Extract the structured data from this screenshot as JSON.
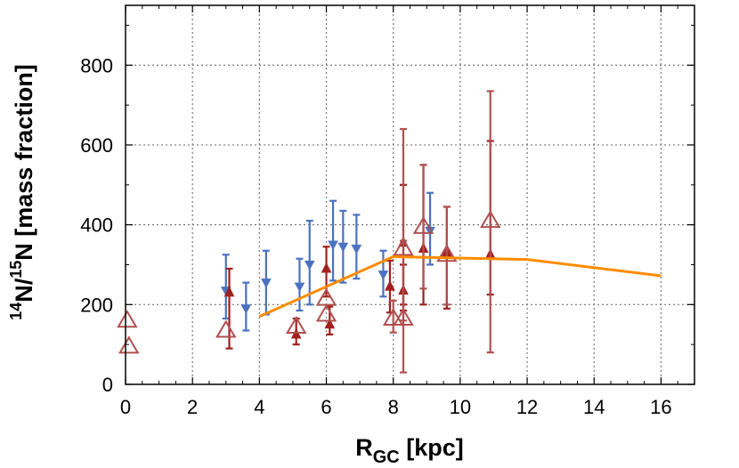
{
  "chart_data": {
    "type": "scatter",
    "xlabel": {
      "main": "R",
      "sub": "GC",
      "rest": " [kpc]"
    },
    "ylabel": {
      "sup1": "14",
      "main1": "N/",
      "sup2": "15",
      "main2": "N [mass fraction]"
    },
    "xlim": [
      0,
      17
    ],
    "ylim": [
      0,
      950
    ],
    "xticks": [
      0,
      2,
      4,
      6,
      8,
      10,
      12,
      14,
      16
    ],
    "yticks": [
      0,
      200,
      400,
      600,
      800
    ],
    "grid": true,
    "colors": {
      "blue": "#4a72c0",
      "red_dark": "#a02020",
      "red_light": "#b05050",
      "model": "#ff8c00"
    },
    "series": [
      {
        "marker": "triangle-down",
        "color": "#4a72c0",
        "points": [
          {
            "x": 3.0,
            "y": 235,
            "lo": 165,
            "hi": 325
          },
          {
            "x": 3.6,
            "y": 190,
            "lo": 135,
            "hi": 255
          },
          {
            "x": 4.2,
            "y": 255,
            "lo": 175,
            "hi": 335
          },
          {
            "x": 5.2,
            "y": 245,
            "lo": 185,
            "hi": 315
          },
          {
            "x": 5.5,
            "y": 300,
            "lo": 200,
            "hi": 410
          },
          {
            "x": 6.2,
            "y": 350,
            "lo": 260,
            "hi": 460
          },
          {
            "x": 6.5,
            "y": 345,
            "lo": 255,
            "hi": 435
          },
          {
            "x": 6.9,
            "y": 340,
            "lo": 265,
            "hi": 425
          },
          {
            "x": 7.7,
            "y": 275,
            "lo": 220,
            "hi": 335
          },
          {
            "x": 9.1,
            "y": 385,
            "lo": 300,
            "hi": 480
          }
        ]
      },
      {
        "marker": "triangle-up-filled",
        "color": "#a02020",
        "points": [
          {
            "x": 3.1,
            "y": 230,
            "lo": 90,
            "hi": 290
          },
          {
            "x": 5.1,
            "y": 125,
            "lo": 100,
            "hi": 165
          },
          {
            "x": 6.0,
            "y": 290,
            "lo": 220,
            "hi": 345
          },
          {
            "x": 6.1,
            "y": 150,
            "lo": 125,
            "hi": 195
          },
          {
            "x": 7.9,
            "y": 245,
            "lo": 180,
            "hi": 310
          },
          {
            "x": 8.3,
            "y": 235,
            "lo": 185,
            "hi": 300
          },
          {
            "x": 8.3,
            "y": 355,
            "lo": 200,
            "hi": 500
          },
          {
            "x": 8.9,
            "y": 340,
            "lo": 200,
            "hi": 550
          },
          {
            "x": 9.6,
            "y": 330,
            "lo": 190,
            "hi": 445
          },
          {
            "x": 10.9,
            "y": 325,
            "lo": 225,
            "hi": 610
          }
        ]
      },
      {
        "marker": "triangle-up-open",
        "color": "#b05050",
        "points": [
          {
            "x": 0.05,
            "y": 160,
            "lo": null,
            "hi": null
          },
          {
            "x": 0.1,
            "y": 95,
            "lo": null,
            "hi": null
          },
          {
            "x": 3.0,
            "y": 135,
            "lo": null,
            "hi": null
          },
          {
            "x": 5.1,
            "y": 145,
            "lo": null,
            "hi": null
          },
          {
            "x": 6.0,
            "y": 215,
            "lo": null,
            "hi": null
          },
          {
            "x": 6.0,
            "y": 175,
            "lo": null,
            "hi": null
          },
          {
            "x": 8.0,
            "y": 165,
            "lo": 130,
            "hi": 210
          },
          {
            "x": 8.3,
            "y": 340,
            "lo": 160,
            "hi": 640
          },
          {
            "x": 8.3,
            "y": 165,
            "lo": 30,
            "hi": 360
          },
          {
            "x": 8.9,
            "y": 395,
            "lo": 240,
            "hi": 550
          },
          {
            "x": 9.6,
            "y": 325,
            "lo": 200,
            "hi": 445
          },
          {
            "x": 10.9,
            "y": 410,
            "lo": 80,
            "hi": 735
          }
        ]
      },
      {
        "type": "line",
        "color": "#ff8c00",
        "x": [
          4,
          8,
          12,
          16
        ],
        "y": [
          170,
          320,
          313,
          272
        ]
      }
    ]
  }
}
